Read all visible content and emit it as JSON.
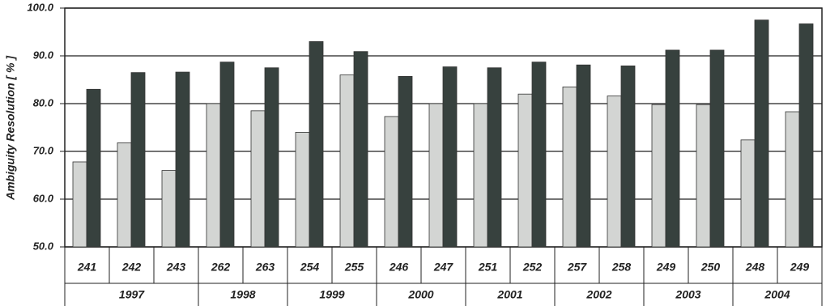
{
  "chart_data": {
    "type": "bar",
    "y_label": "Ambiguity Resolution [ % ]",
    "groups": [
      {
        "label": "1997",
        "categories": [
          "241",
          "242",
          "243"
        ]
      },
      {
        "label": "1998",
        "categories": [
          "262",
          "263"
        ]
      },
      {
        "label": "1999",
        "categories": [
          "254",
          "255"
        ]
      },
      {
        "label": "2000",
        "categories": [
          "246",
          "247"
        ]
      },
      {
        "label": "2001",
        "categories": [
          "251",
          "252"
        ]
      },
      {
        "label": "2002",
        "categories": [
          "257",
          "258"
        ]
      },
      {
        "label": "2003",
        "categories": [
          "249",
          "250"
        ]
      },
      {
        "label": "2004",
        "categories": [
          "248",
          "249"
        ]
      }
    ],
    "series": [
      {
        "color": "#d3d5d3",
        "values": [
          67.8,
          71.8,
          66.0,
          80.0,
          78.5,
          74.0,
          86.0,
          77.3,
          80.0,
          80.0,
          82.0,
          83.5,
          81.6,
          79.8,
          79.8,
          72.4,
          78.3
        ]
      },
      {
        "color": "#37413e",
        "values": [
          83.0,
          86.5,
          86.6,
          88.7,
          87.5,
          93.0,
          90.9,
          85.7,
          87.7,
          87.5,
          88.7,
          88.1,
          87.9,
          91.2,
          91.2,
          97.5,
          96.7
        ]
      }
    ],
    "ylim": [
      50,
      100
    ],
    "yticks": [
      {
        "value": 50,
        "label": "50.0"
      },
      {
        "value": 60,
        "label": "60.0"
      },
      {
        "value": 70,
        "label": "70.0"
      },
      {
        "value": 80,
        "label": "80.0"
      },
      {
        "value": 90,
        "label": "90.0"
      },
      {
        "value": 100,
        "label": "100.0"
      }
    ],
    "grid": true
  }
}
